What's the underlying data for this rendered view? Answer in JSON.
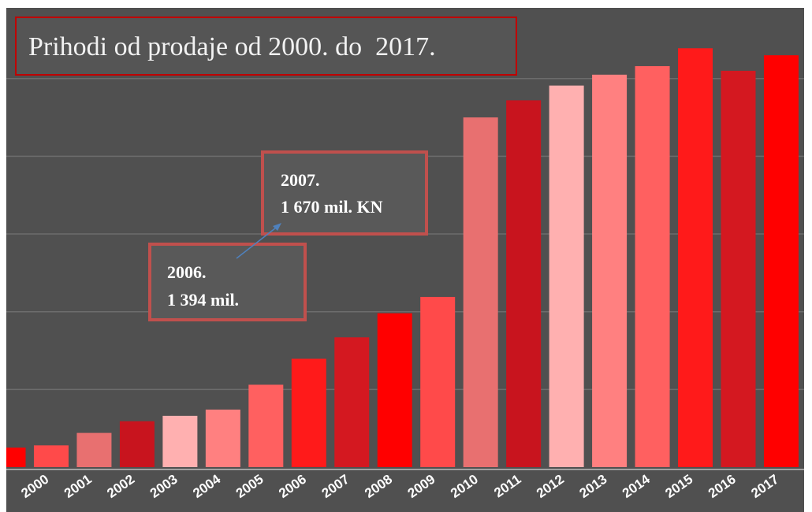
{
  "chart_data": {
    "type": "bar",
    "title": "Prihodi od prodaje od 2000. do  2017.",
    "categories": [
      null,
      "2000",
      "2001",
      "2002",
      "2003",
      "2004",
      "2005",
      "2006",
      "2007",
      "2008",
      "2009",
      "2010",
      "2011",
      "2012",
      "2013",
      "2014",
      "2015",
      "2016",
      "2017"
    ],
    "values": [
      250,
      280,
      440,
      590,
      660,
      740,
      1060,
      1394,
      1670,
      1980,
      2190,
      4500,
      4720,
      4910,
      5050,
      5160,
      5390,
      5100,
      5300
    ],
    "colors": [
      "#ff0000",
      "#ff4a4a",
      "#e87070",
      "#c8141e",
      "#ffb0b0",
      "#ff8080",
      "#ff6060",
      "#ff1a1a",
      "#d41820",
      "#ff0000",
      "#ff4a4a",
      "#e87070",
      "#c8141e",
      "#ffb0b0",
      "#ff8080",
      "#ff6060",
      "#ff1a1a",
      "#d41820",
      "#ff0000"
    ],
    "ylim": [
      0,
      5930
    ],
    "yticks": [
      1000,
      2000,
      3000,
      4000,
      5000
    ],
    "grid": true,
    "annotations": [
      {
        "lines": [
          "2006.",
          "1 394 mil."
        ]
      },
      {
        "lines": [
          "2007.",
          "1 670 mil. KN"
        ]
      }
    ]
  }
}
